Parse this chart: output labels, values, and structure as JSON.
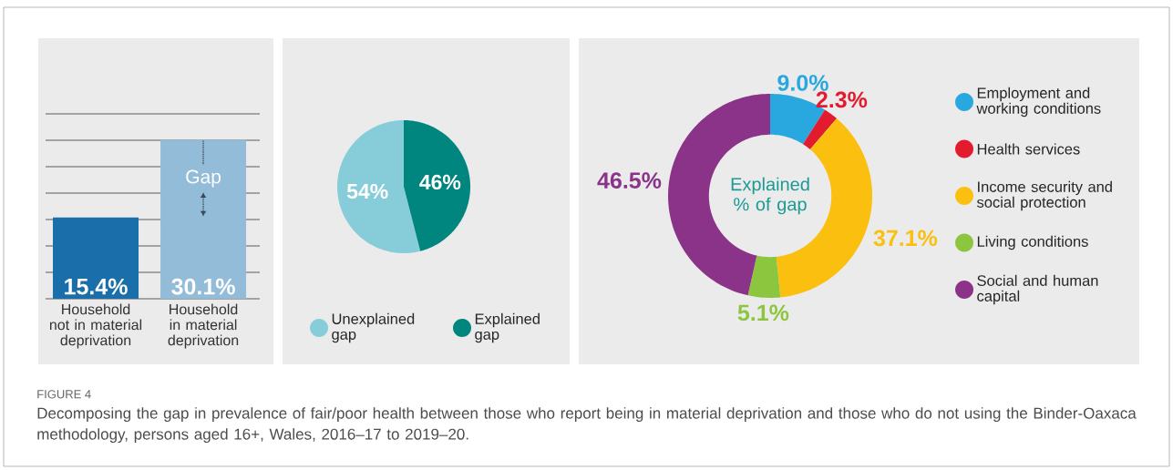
{
  "chart_data": [
    {
      "type": "bar",
      "categories": [
        "Household not in material deprivation",
        "Household in material deprivation"
      ],
      "values": [
        15.4,
        30.1
      ],
      "colors": [
        "#1a6faa",
        "#93bcd8"
      ],
      "value_labels": [
        "15.4%",
        "30.1%"
      ],
      "ylim": [
        0,
        35
      ],
      "yticks": [
        {
          "value": 0,
          "label": null
        },
        {
          "value": 5,
          "label": null
        },
        {
          "value": 10,
          "label": null
        },
        {
          "value": 15,
          "label": null
        },
        {
          "value": 20,
          "label": null
        },
        {
          "value": 25,
          "label": null
        },
        {
          "value": 30,
          "label": null
        },
        {
          "value": 35,
          "label": null
        }
      ],
      "grid": "y",
      "tick_labels": "x",
      "annotations": [
        "Gap",
        "FIGURE 4",
        "Decomposing the gap in prevalence of fair/poor health between those who report being in material deprivation and those who do not using the Binder-Oaxaca methodology, persons aged 16+, Wales, 2016–17 to 2019–20."
      ]
    },
    {
      "type": "pie",
      "categories": [
        "Unexplained gap",
        "Explained gap"
      ],
      "values": [
        54,
        46
      ],
      "colors": [
        "#86cdd9",
        "#00857f"
      ],
      "value_labels": [
        "54%",
        "46%"
      ],
      "legend": "bottom"
    },
    {
      "type": "donut",
      "categories": [
        "Employment and working conditions",
        "Health services",
        "Income security and social protection",
        "Living conditions",
        "Social and human capital"
      ],
      "values": [
        9.0,
        2.3,
        37.1,
        5.1,
        46.5
      ],
      "colors": [
        "#29a8e0",
        "#e31b2e",
        "#fbbf10",
        "#8cc63f",
        "#8b3388"
      ],
      "value_labels": [
        "9.0%",
        "2.3%",
        "37.1%",
        "5.1%",
        "46.5%"
      ],
      "legend": "right",
      "annotations": [
        "Explained % of gap"
      ]
    }
  ]
}
